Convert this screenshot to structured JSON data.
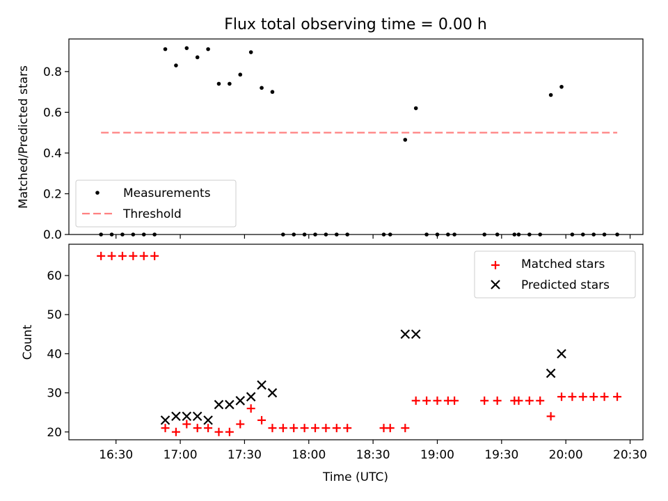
{
  "chart_data": [
    {
      "type": "scatter",
      "title": "Flux total observing time = 0.00 h",
      "ylabel": "Matched/Predicted stars",
      "xlabel": "",
      "ylim": [
        0,
        0.96
      ],
      "yticks": [
        "0.0",
        "0.2",
        "0.4",
        "0.6",
        "0.8"
      ],
      "ytick_values": [
        0,
        0.2,
        0.4,
        0.6,
        0.8
      ],
      "legend": {
        "position": "lower-left",
        "entries": [
          "Measurements",
          "Threshold"
        ]
      },
      "threshold": {
        "name": "Threshold",
        "value": 0.5,
        "x_range": [
          "16:23",
          "20:24"
        ],
        "color": "#ff8080"
      },
      "series": [
        {
          "name": "Measurements",
          "color": "#000000",
          "points": [
            [
              "16:23",
              0
            ],
            [
              "16:28",
              0
            ],
            [
              "16:33",
              0
            ],
            [
              "16:38",
              0
            ],
            [
              "16:43",
              0
            ],
            [
              "16:48",
              0
            ],
            [
              "16:53",
              0.91
            ],
            [
              "16:58",
              0.83
            ],
            [
              "17:03",
              0.915
            ],
            [
              "17:08",
              0.87
            ],
            [
              "17:13",
              0.91
            ],
            [
              "17:18",
              0.74
            ],
            [
              "17:23",
              0.74
            ],
            [
              "17:28",
              0.785
            ],
            [
              "17:33",
              0.895
            ],
            [
              "17:38",
              0.72
            ],
            [
              "17:43",
              0.7
            ],
            [
              "17:48",
              0
            ],
            [
              "17:53",
              0
            ],
            [
              "17:58",
              0
            ],
            [
              "18:03",
              0
            ],
            [
              "18:08",
              0
            ],
            [
              "18:13",
              0
            ],
            [
              "18:18",
              0
            ],
            [
              "18:35",
              0
            ],
            [
              "18:38",
              0
            ],
            [
              "18:45",
              0.465
            ],
            [
              "18:50",
              0.62
            ],
            [
              "18:55",
              0
            ],
            [
              "19:00",
              0
            ],
            [
              "19:05",
              0
            ],
            [
              "19:08",
              0
            ],
            [
              "19:22",
              0
            ],
            [
              "19:28",
              0
            ],
            [
              "19:36",
              0
            ],
            [
              "19:38",
              0
            ],
            [
              "19:43",
              0
            ],
            [
              "19:48",
              0
            ],
            [
              "19:53",
              0.685
            ],
            [
              "19:58",
              0.725
            ],
            [
              "20:03",
              0
            ],
            [
              "20:08",
              0
            ],
            [
              "20:13",
              0
            ],
            [
              "20:18",
              0
            ],
            [
              "20:24",
              0
            ]
          ]
        }
      ]
    },
    {
      "type": "scatter",
      "title": "",
      "ylabel": "Count",
      "xlabel": "Time (UTC)",
      "ylim": [
        18,
        68
      ],
      "yticks": [
        "20",
        "30",
        "40",
        "50",
        "60"
      ],
      "ytick_values": [
        20,
        30,
        40,
        50,
        60
      ],
      "xlim": [
        "16:08",
        "20:36"
      ],
      "xticks": [
        "16:30",
        "17:00",
        "17:30",
        "18:00",
        "18:30",
        "19:00",
        "19:30",
        "20:00",
        "20:30"
      ],
      "legend": {
        "position": "upper-right",
        "entries": [
          "Matched stars",
          "Predicted stars"
        ]
      },
      "series": [
        {
          "name": "Matched stars",
          "marker": "+",
          "color": "#ff0000",
          "points": [
            [
              "16:23",
              65
            ],
            [
              "16:28",
              65
            ],
            [
              "16:33",
              65
            ],
            [
              "16:38",
              65
            ],
            [
              "16:43",
              65
            ],
            [
              "16:48",
              65
            ],
            [
              "16:53",
              21
            ],
            [
              "16:58",
              20
            ],
            [
              "17:03",
              22
            ],
            [
              "17:08",
              21
            ],
            [
              "17:13",
              21
            ],
            [
              "17:18",
              20
            ],
            [
              "17:23",
              20
            ],
            [
              "17:28",
              22
            ],
            [
              "17:33",
              26
            ],
            [
              "17:38",
              23
            ],
            [
              "17:43",
              21
            ],
            [
              "17:48",
              21
            ],
            [
              "17:53",
              21
            ],
            [
              "17:58",
              21
            ],
            [
              "18:03",
              21
            ],
            [
              "18:08",
              21
            ],
            [
              "18:13",
              21
            ],
            [
              "18:18",
              21
            ],
            [
              "18:35",
              21
            ],
            [
              "18:38",
              21
            ],
            [
              "18:45",
              21
            ],
            [
              "18:50",
              28
            ],
            [
              "18:55",
              28
            ],
            [
              "19:00",
              28
            ],
            [
              "19:05",
              28
            ],
            [
              "19:08",
              28
            ],
            [
              "19:22",
              28
            ],
            [
              "19:28",
              28
            ],
            [
              "19:36",
              28
            ],
            [
              "19:38",
              28
            ],
            [
              "19:43",
              28
            ],
            [
              "19:48",
              28
            ],
            [
              "19:53",
              24
            ],
            [
              "19:58",
              29
            ],
            [
              "20:03",
              29
            ],
            [
              "20:08",
              29
            ],
            [
              "20:13",
              29
            ],
            [
              "20:18",
              29
            ],
            [
              "20:24",
              29
            ]
          ]
        },
        {
          "name": "Predicted stars",
          "marker": "x",
          "color": "#000000",
          "points": [
            [
              "16:53",
              23
            ],
            [
              "16:58",
              24
            ],
            [
              "17:03",
              24
            ],
            [
              "17:08",
              24
            ],
            [
              "17:13",
              23
            ],
            [
              "17:18",
              27
            ],
            [
              "17:23",
              27
            ],
            [
              "17:28",
              28
            ],
            [
              "17:33",
              29
            ],
            [
              "17:38",
              32
            ],
            [
              "17:43",
              30
            ],
            [
              "18:45",
              45
            ],
            [
              "18:50",
              45
            ],
            [
              "19:53",
              35
            ],
            [
              "19:58",
              40
            ]
          ]
        }
      ]
    }
  ]
}
